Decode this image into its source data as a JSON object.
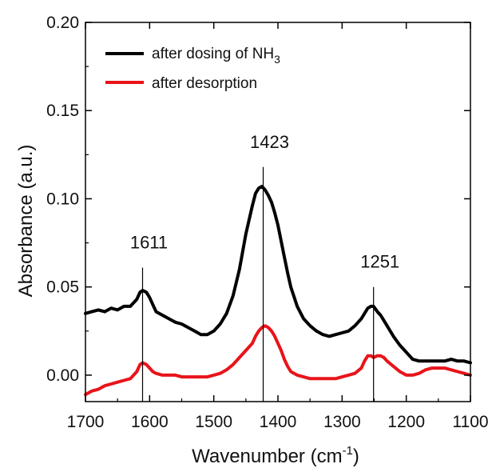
{
  "chart_data": {
    "type": "line",
    "xlabel": "Wavenumber (cm",
    "xlabel_sup": "-1",
    "xlabel_close": ")",
    "ylabel": "Absorbance (a.u.)",
    "xlim": [
      1700,
      1100
    ],
    "ylim": [
      -0.015,
      0.2
    ],
    "x_reversed": true,
    "x_ticks": [
      1700,
      1600,
      1500,
      1400,
      1300,
      1200,
      1100
    ],
    "y_ticks": [
      0.0,
      0.05,
      0.1,
      0.15,
      0.2
    ],
    "y_tick_labels": [
      "0.00",
      "0.05",
      "0.10",
      "0.15",
      "0.20"
    ],
    "legend": {
      "placement": "top-left",
      "entries": [
        {
          "label": "after dosing of NH",
          "sub": "3",
          "color": "#000000"
        },
        {
          "label": "after desorption",
          "sub": "",
          "color": "#e8141a"
        }
      ]
    },
    "annotations": [
      {
        "label": "1611",
        "x": 1611,
        "y_top": 0.061
      },
      {
        "label": "1423",
        "x": 1423,
        "y_top": 0.118
      },
      {
        "label": "1251",
        "x": 1251,
        "y_top": 0.05
      }
    ],
    "series": [
      {
        "name": "after dosing of NH3",
        "color": "#000000",
        "width": 4,
        "x": [
          1700,
          1690,
          1680,
          1670,
          1660,
          1650,
          1640,
          1630,
          1620,
          1615,
          1611,
          1605,
          1600,
          1595,
          1590,
          1580,
          1570,
          1560,
          1550,
          1540,
          1530,
          1520,
          1510,
          1500,
          1490,
          1480,
          1470,
          1460,
          1450,
          1440,
          1435,
          1430,
          1425,
          1420,
          1415,
          1410,
          1405,
          1400,
          1395,
          1390,
          1385,
          1380,
          1370,
          1360,
          1350,
          1340,
          1330,
          1320,
          1310,
          1300,
          1290,
          1280,
          1270,
          1265,
          1260,
          1255,
          1251,
          1245,
          1240,
          1235,
          1230,
          1220,
          1210,
          1200,
          1190,
          1180,
          1170,
          1160,
          1150,
          1140,
          1130,
          1120,
          1110,
          1100
        ],
        "y": [
          0.035,
          0.036,
          0.037,
          0.036,
          0.038,
          0.037,
          0.039,
          0.039,
          0.043,
          0.047,
          0.048,
          0.047,
          0.044,
          0.04,
          0.036,
          0.034,
          0.032,
          0.03,
          0.029,
          0.027,
          0.025,
          0.023,
          0.023,
          0.025,
          0.029,
          0.035,
          0.045,
          0.06,
          0.08,
          0.096,
          0.103,
          0.106,
          0.107,
          0.105,
          0.102,
          0.098,
          0.092,
          0.085,
          0.076,
          0.067,
          0.058,
          0.05,
          0.039,
          0.032,
          0.028,
          0.025,
          0.023,
          0.022,
          0.023,
          0.024,
          0.025,
          0.028,
          0.032,
          0.035,
          0.038,
          0.039,
          0.039,
          0.036,
          0.034,
          0.031,
          0.028,
          0.022,
          0.017,
          0.013,
          0.009,
          0.008,
          0.008,
          0.008,
          0.008,
          0.008,
          0.009,
          0.008,
          0.008,
          0.007
        ]
      },
      {
        "name": "after desorption",
        "color": "#e8141a",
        "width": 4,
        "x": [
          1700,
          1690,
          1680,
          1670,
          1660,
          1650,
          1640,
          1630,
          1620,
          1615,
          1611,
          1605,
          1600,
          1595,
          1590,
          1580,
          1570,
          1560,
          1550,
          1540,
          1530,
          1520,
          1510,
          1500,
          1490,
          1480,
          1470,
          1460,
          1450,
          1440,
          1435,
          1430,
          1425,
          1420,
          1415,
          1410,
          1405,
          1400,
          1395,
          1390,
          1385,
          1380,
          1370,
          1360,
          1350,
          1340,
          1330,
          1320,
          1310,
          1300,
          1290,
          1280,
          1270,
          1265,
          1260,
          1255,
          1251,
          1245,
          1240,
          1235,
          1230,
          1220,
          1210,
          1200,
          1190,
          1180,
          1170,
          1160,
          1150,
          1140,
          1130,
          1120,
          1110,
          1100
        ],
        "y": [
          -0.011,
          -0.009,
          -0.008,
          -0.006,
          -0.005,
          -0.004,
          -0.003,
          -0.002,
          0.002,
          0.006,
          0.007,
          0.006,
          0.004,
          0.002,
          0.001,
          0.0,
          0.0,
          0.0,
          -0.001,
          -0.001,
          -0.001,
          -0.001,
          -0.001,
          0.0,
          0.001,
          0.003,
          0.006,
          0.01,
          0.014,
          0.018,
          0.022,
          0.025,
          0.027,
          0.028,
          0.027,
          0.025,
          0.022,
          0.018,
          0.014,
          0.009,
          0.005,
          0.002,
          0.0,
          -0.001,
          -0.002,
          -0.002,
          -0.002,
          -0.002,
          -0.002,
          -0.001,
          0.0,
          0.001,
          0.004,
          0.008,
          0.011,
          0.011,
          0.01,
          0.011,
          0.011,
          0.01,
          0.008,
          0.005,
          0.002,
          0.0,
          0.0,
          0.001,
          0.003,
          0.004,
          0.004,
          0.004,
          0.003,
          0.002,
          0.001,
          0.0
        ]
      }
    ]
  }
}
